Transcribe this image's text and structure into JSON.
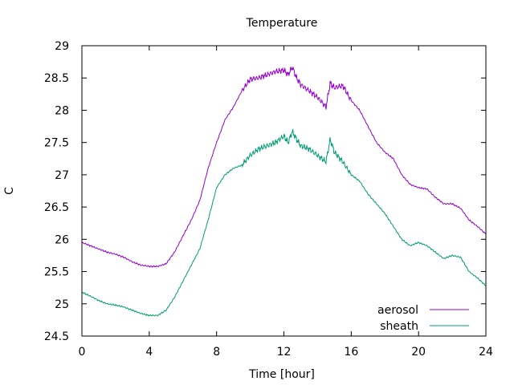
{
  "chart_data": {
    "type": "line",
    "title": "Temperature",
    "xlabel": "Time [hour]",
    "ylabel": "C",
    "xlim": [
      0,
      24
    ],
    "ylim": [
      24.5,
      29
    ],
    "xticks": [
      0,
      4,
      8,
      12,
      16,
      20,
      24
    ],
    "yticks": [
      24.5,
      25,
      25.5,
      26,
      26.5,
      27,
      27.5,
      28,
      28.5,
      29
    ],
    "ytick_labels": [
      "24.5",
      "25",
      "25.5",
      "26",
      "26.5",
      "27",
      "27.5",
      "28",
      "28.5",
      "29"
    ],
    "grid": false,
    "legend_position": "bottom-right",
    "series": [
      {
        "name": "aerosol",
        "color": "#9400d3",
        "x": [
          0,
          0.5,
          1,
          1.5,
          2,
          2.5,
          3,
          3.5,
          4,
          4.5,
          5,
          5.5,
          6,
          6.5,
          7,
          7.5,
          8,
          8.5,
          9,
          9.5,
          10,
          10.5,
          11,
          11.5,
          12,
          12.25,
          12.5,
          12.75,
          13,
          13.5,
          14,
          14.5,
          14.75,
          15,
          15.5,
          16,
          16.5,
          17,
          17.5,
          18,
          18.5,
          19,
          19.5,
          20,
          20.5,
          21,
          21.5,
          22,
          22.5,
          23,
          23.5,
          24
        ],
        "y": [
          25.95,
          25.9,
          25.85,
          25.8,
          25.77,
          25.72,
          25.65,
          25.6,
          25.58,
          25.58,
          25.62,
          25.8,
          26.05,
          26.3,
          26.6,
          27.1,
          27.5,
          27.85,
          28.05,
          28.3,
          28.48,
          28.5,
          28.55,
          28.6,
          28.62,
          28.55,
          28.67,
          28.5,
          28.4,
          28.3,
          28.2,
          28.05,
          28.42,
          28.35,
          28.38,
          28.15,
          28.0,
          27.75,
          27.5,
          27.35,
          27.25,
          27.0,
          26.85,
          26.8,
          26.78,
          26.65,
          26.55,
          26.55,
          26.48,
          26.3,
          26.2,
          26.08
        ]
      },
      {
        "name": "sheath",
        "color": "#009e73",
        "x": [
          0,
          0.5,
          1,
          1.5,
          2,
          2.5,
          3,
          3.5,
          4,
          4.5,
          5,
          5.5,
          6,
          6.5,
          7,
          7.5,
          8,
          8.5,
          9,
          9.5,
          10,
          10.5,
          11,
          11.5,
          12,
          12.25,
          12.5,
          12.75,
          13,
          13.5,
          14,
          14.5,
          14.75,
          15,
          15.5,
          16,
          16.5,
          17,
          17.5,
          18,
          18.5,
          19,
          19.5,
          20,
          20.5,
          21,
          21.5,
          22,
          22.5,
          23,
          23.5,
          24
        ],
        "y": [
          25.18,
          25.12,
          25.05,
          25.0,
          24.98,
          24.95,
          24.9,
          24.85,
          24.82,
          24.82,
          24.9,
          25.1,
          25.35,
          25.6,
          25.85,
          26.3,
          26.8,
          27.0,
          27.1,
          27.15,
          27.3,
          27.4,
          27.45,
          27.5,
          27.6,
          27.5,
          27.67,
          27.55,
          27.45,
          27.4,
          27.3,
          27.2,
          27.55,
          27.35,
          27.2,
          27.0,
          26.9,
          26.7,
          26.55,
          26.4,
          26.2,
          26.0,
          25.9,
          25.95,
          25.9,
          25.8,
          25.7,
          25.75,
          25.72,
          25.5,
          25.4,
          25.28
        ]
      }
    ]
  }
}
